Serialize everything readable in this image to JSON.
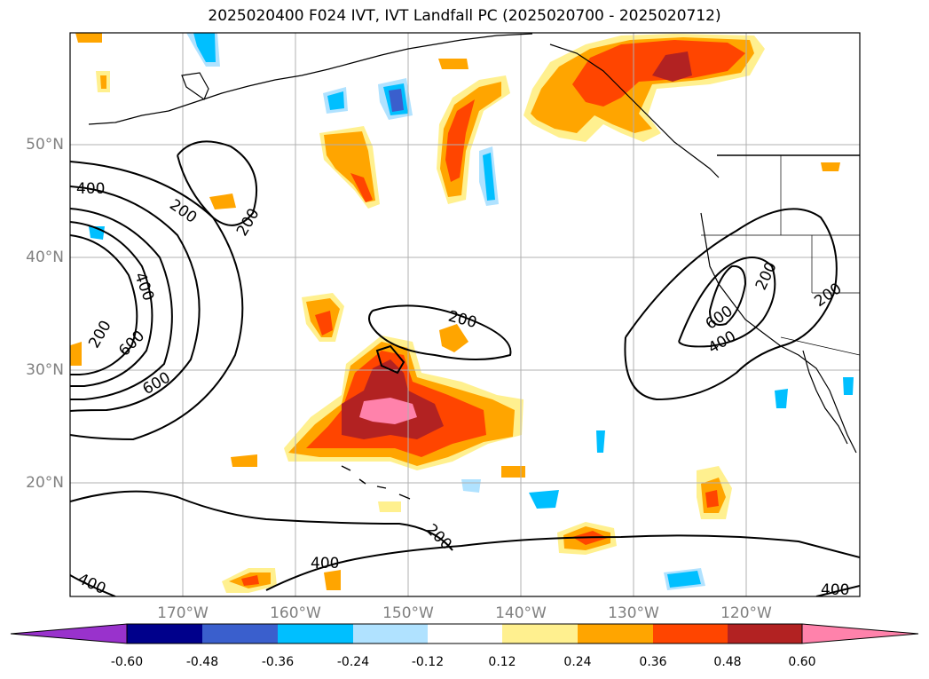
{
  "title": "2025020400 F024 IVT, IVT Landfall PC (2025020700 - 2025020712)",
  "map": {
    "lat_labels": [
      "50°N",
      "40°N",
      "30°N",
      "20°N"
    ],
    "lon_labels": [
      "170°W",
      "160°W",
      "150°W",
      "140°W",
      "130°W",
      "120°W"
    ],
    "contour_labels": [
      "400",
      "200",
      "200",
      "400",
      "200",
      "600",
      "600",
      "200",
      "200",
      "600",
      "400",
      "200",
      "200",
      "400",
      "400",
      "400"
    ],
    "grid": true,
    "fill_colors": {
      "neg_060": "#9932cc",
      "neg_048": "#00008b",
      "neg_036": "#3a5fcd",
      "neg_024": "#00bfff",
      "neg_012": "#b0e2ff",
      "neutral": "#ffffff",
      "pos_012": "#fff08f",
      "pos_024": "#ffa500",
      "pos_036": "#ff4500",
      "pos_048": "#b22222",
      "pos_060": "#ff82ab"
    }
  },
  "colorbar": {
    "ticks": [
      "-0.60",
      "-0.48",
      "-0.36",
      "-0.24",
      "-0.12",
      "0.12",
      "0.24",
      "0.36",
      "0.48",
      "0.60"
    ],
    "colors": [
      "#9932cc",
      "#00008b",
      "#3a5fcd",
      "#00bfff",
      "#b0e2ff",
      "#ffffff",
      "#fff08f",
      "#ffa500",
      "#ff4500",
      "#b22222",
      "#ff82ab"
    ]
  }
}
